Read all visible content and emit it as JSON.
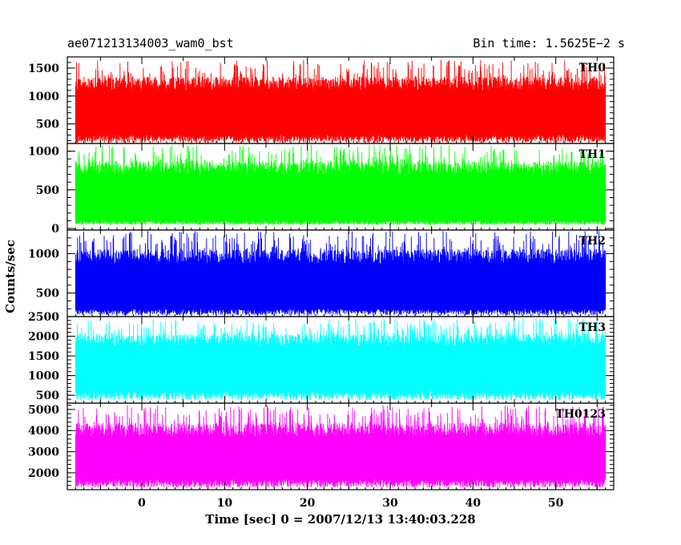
{
  "header": {
    "left_title": "ae071213134003_wam0_bst",
    "right_title": "Bin time: 1.5625E−2 s"
  },
  "chart_data": {
    "type": "line",
    "xlabel": "Time [sec] 0 = 2007/12/13 13:40:03.228",
    "ylabel": "Counts/sec",
    "xlim": [
      -9,
      57
    ],
    "x_ticks": [
      0,
      10,
      20,
      30,
      40,
      50
    ],
    "x_range_data": [
      -8,
      56
    ],
    "bin_time_s": 0.015625,
    "grid": false,
    "panels": [
      {
        "name": "TH0",
        "color": "#ff0000",
        "ylim": [
          150,
          1700
        ],
        "y_ticks": [
          500,
          1000,
          1500
        ],
        "band": [
          300,
          1100
        ],
        "trace_min": 150,
        "trace_max": 1650
      },
      {
        "name": "TH1",
        "color": "#00ff00",
        "ylim": [
          -20,
          1100
        ],
        "y_ticks": [
          0,
          500,
          1000
        ],
        "band": [
          100,
          700
        ],
        "trace_min": 40,
        "trace_max": 1080
      },
      {
        "name": "TH2",
        "color": "#0000ff",
        "ylim": [
          200,
          1300
        ],
        "y_ticks": [
          500,
          1000
        ],
        "band": [
          300,
          870
        ],
        "trace_min": 210,
        "trace_max": 1290
      },
      {
        "name": "TH3",
        "color": "#00ffff",
        "ylim": [
          300,
          2500
        ],
        "y_ticks": [
          500,
          1000,
          1500,
          2000,
          2500
        ],
        "band": [
          600,
          1750
        ],
        "trace_min": 350,
        "trace_max": 2450
      },
      {
        "name": "TH0123",
        "color": "#ff00ff",
        "ylim": [
          1200,
          5300
        ],
        "y_ticks": [
          2000,
          3000,
          4000,
          5000
        ],
        "band": [
          1700,
          3700
        ],
        "trace_min": 1250,
        "trace_max": 5200
      }
    ]
  }
}
